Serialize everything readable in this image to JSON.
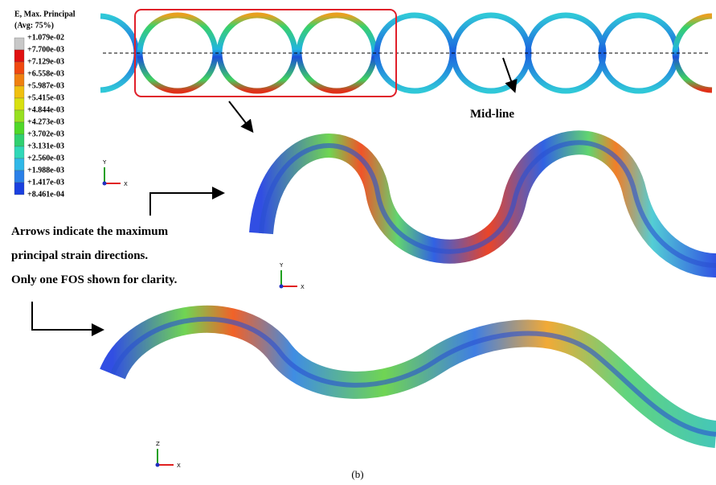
{
  "legend": {
    "title": "E, Max. Principal",
    "subtitle": "(Avg: 75%)",
    "labels": [
      "+1.079e-02",
      "+7.700e-03",
      "+7.129e-03",
      "+6.558e-03",
      "+5.987e-03",
      "+5.415e-03",
      "+4.844e-03",
      "+4.273e-03",
      "+3.702e-03",
      "+3.131e-03",
      "+2.560e-03",
      "+1.988e-03",
      "+1.417e-03",
      "+8.461e-04"
    ]
  },
  "annotations": {
    "midline": "Mid-line",
    "note": [
      "Arrows indicate the maximum",
      "principal strain directions.",
      "Only one FOS shown for clarity."
    ]
  },
  "triads": [
    {
      "vertical": "Y",
      "horizontal": "X"
    },
    {
      "vertical": "Y",
      "horizontal": "X"
    },
    {
      "vertical": "Z",
      "horizontal": "X"
    }
  ],
  "caption": "(b)"
}
